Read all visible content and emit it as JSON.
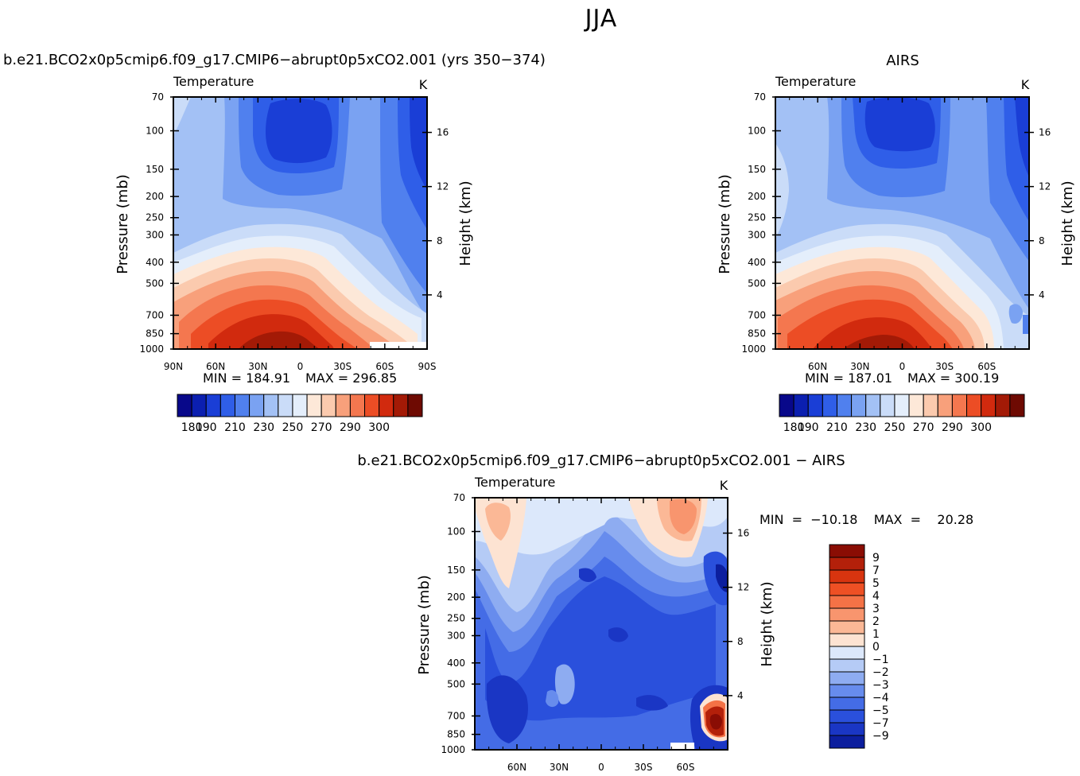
{
  "figure_title": "JJA",
  "chart_data": [
    {
      "type": "heatmap",
      "id": "model",
      "title": "b.e21.BCO2x0p5cmip6.f09_g17.CMIP6−abrupt0p5xCO2.001  (yrs  350−374)",
      "variable": "Temperature",
      "units": "K",
      "ylabel": "Pressure  (mb)",
      "y2label": "Height  (km)",
      "xticks": [
        "90N",
        "60N",
        "30N",
        "0",
        "30S",
        "60S",
        "90S"
      ],
      "yticks": [
        "70",
        "100",
        "150",
        "200",
        "250",
        "300",
        "400",
        "500",
        "700",
        "850",
        "1000"
      ],
      "y2ticks": [
        "16",
        "12",
        "8",
        "4"
      ],
      "min_label": "MIN  =  184.91",
      "max_label": "MAX  =  296.85",
      "colorbar_ticks": [
        "180",
        "190",
        "210",
        "230",
        "250",
        "270",
        "290",
        "300"
      ],
      "palette": [
        "#08088a",
        "#0b1fb0",
        "#1a3ed6",
        "#2f5ee8",
        "#5080ee",
        "#7aa2f2",
        "#a3c1f5",
        "#cadcf8",
        "#e4eefb",
        "#fde8d8",
        "#fbcaae",
        "#f8a07b",
        "#f4774f",
        "#ec4d25",
        "#d12a0e",
        "#a31a06",
        "#6e0a02"
      ]
    },
    {
      "type": "heatmap",
      "id": "obs",
      "title": "AIRS",
      "variable": "Temperature",
      "units": "K",
      "ylabel": "Pressure  (mb)",
      "y2label": "Height  (km)",
      "xticks": [
        "60N",
        "30N",
        "0",
        "30S",
        "60S"
      ],
      "yticks": [
        "70",
        "100",
        "150",
        "200",
        "250",
        "300",
        "400",
        "500",
        "700",
        "850",
        "1000"
      ],
      "y2ticks": [
        "16",
        "12",
        "8",
        "4"
      ],
      "min_label": "MIN  =  187.01",
      "max_label": "MAX  =  300.19",
      "colorbar_ticks": [
        "180",
        "190",
        "210",
        "230",
        "250",
        "270",
        "290",
        "300"
      ]
    },
    {
      "type": "heatmap",
      "id": "diff",
      "title": "b.e21.BCO2x0p5cmip6.f09_g17.CMIP6−abrupt0p5xCO2.001  −  AIRS",
      "variable": "Temperature",
      "units": "K",
      "ylabel": "Pressure  (mb)",
      "y2label": "Height  (km)",
      "xticks": [
        "60N",
        "30N",
        "0",
        "30S",
        "60S"
      ],
      "yticks": [
        "70",
        "100",
        "150",
        "200",
        "250",
        "300",
        "400",
        "500",
        "700",
        "850",
        "1000"
      ],
      "y2ticks": [
        "16",
        "12",
        "8",
        "4"
      ],
      "minmax_label": "MIN  =  −10.18    MAX  =    20.28",
      "colorbar_ticks": [
        "9",
        "7",
        "5",
        "4",
        "3",
        "2",
        "1",
        "0",
        "−1",
        "−2",
        "−3",
        "−4",
        "−5",
        "−7",
        "−9"
      ],
      "palette": [
        "#8a0d04",
        "#b3200a",
        "#d8340f",
        "#ee5024",
        "#f47246",
        "#f8956e",
        "#fbb896",
        "#fde3d2",
        "#dce8fb",
        "#b5cbf6",
        "#8eacf1",
        "#678ced",
        "#446ce6",
        "#2a50dc",
        "#1a36c4",
        "#0c1e9e"
      ]
    }
  ]
}
